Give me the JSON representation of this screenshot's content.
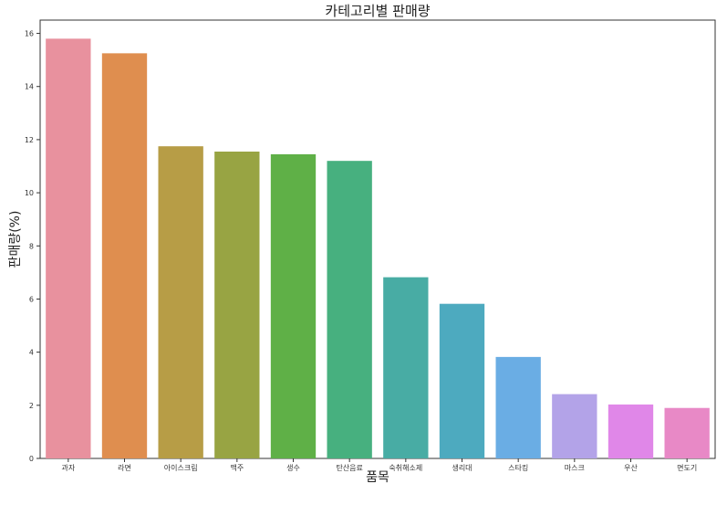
{
  "chart_data": {
    "type": "bar",
    "title": "카테고리별 판매량",
    "xlabel": "품목",
    "ylabel": "판매량(%)",
    "categories": [
      "과자",
      "라면",
      "아이스크림",
      "맥주",
      "생수",
      "탄산음료",
      "숙취해소제",
      "생리대",
      "스타킹",
      "마스크",
      "우산",
      "면도기"
    ],
    "values": [
      15.8,
      15.25,
      11.75,
      11.55,
      11.45,
      11.2,
      6.82,
      5.82,
      3.82,
      2.42,
      2.03,
      1.9
    ],
    "colors": [
      "#e8919e",
      "#df8e4f",
      "#b79d46",
      "#98a443",
      "#5fb047",
      "#47b07f",
      "#48aca4",
      "#4daabf",
      "#6aade4",
      "#b3a3e8",
      "#e087e8",
      "#e889c6"
    ],
    "ylim": [
      0,
      16.5
    ],
    "yticks": [
      0,
      2,
      4,
      6,
      8,
      10,
      12,
      14,
      16
    ],
    "grid": false,
    "legend": "none"
  }
}
